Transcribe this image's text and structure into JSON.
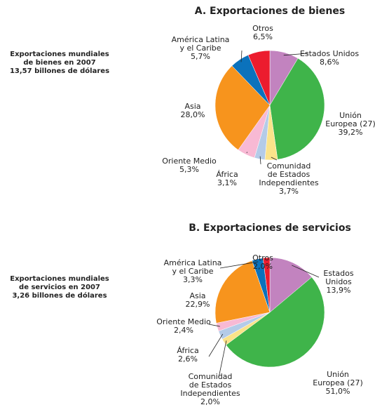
{
  "chart_data": [
    {
      "type": "pie",
      "title": "A. Exportaciones de bienes",
      "annotation": "Exportaciones mundiales\nde bienes en 2007\n13,57 billones de dólares",
      "categories": [
        "Estados Unidos",
        "Unión\nEuropea (27)",
        "Comunidad\nde Estados\nIndependientes",
        "África",
        "Oriente Medio",
        "Asia",
        "América Latina\ny el Caribe",
        "Otros"
      ],
      "values": [
        8.6,
        39.2,
        3.7,
        3.1,
        5.3,
        28.0,
        5.7,
        6.5
      ],
      "value_labels": [
        "8,6%",
        "39,2%",
        "3,7%",
        "3,1%",
        "5,3%",
        "28,0%",
        "5,7%",
        "6,5%"
      ],
      "colors": [
        "#c283bf",
        "#3fb44a",
        "#fbe38a",
        "#b4cbe8",
        "#f8b9d4",
        "#f7941d",
        "#0b72bc",
        "#ec1c2e"
      ]
    },
    {
      "type": "pie",
      "title": "B. Exportaciones de servicios",
      "annotation": "Exportaciones mundiales\nde servicios en 2007\n3,26 billones de dólares",
      "categories": [
        "Estados\nUnidos",
        "Unión\nEuropea (27)",
        "Comunidad\nde Estados\nIndependientes",
        "África",
        "Oriente Medio",
        "Asia",
        "América Latina\ny el Caribe",
        "Otros"
      ],
      "values": [
        13.9,
        51.0,
        2.0,
        2.6,
        2.4,
        22.9,
        3.3,
        2.0
      ],
      "value_labels": [
        "13,9%",
        "51,0%",
        "2,0%",
        "2,6%",
        "2,4%",
        "22,9%",
        "3,3%",
        "2,0%"
      ],
      "colors": [
        "#c283bf",
        "#3fb44a",
        "#fbe38a",
        "#b4cbe8",
        "#f8b9d4",
        "#f7941d",
        "#0b72bc",
        "#ec1c2e"
      ]
    }
  ]
}
